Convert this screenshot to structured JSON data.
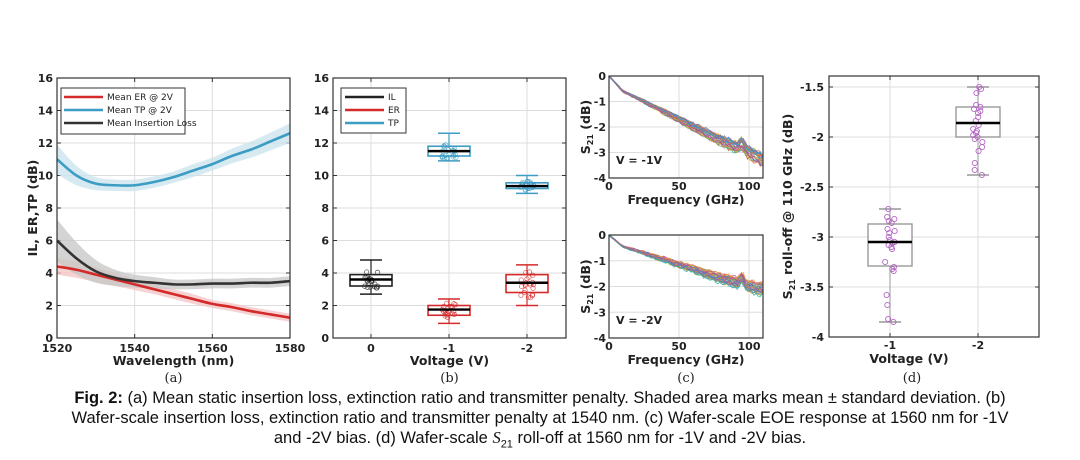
{
  "chart_data": [
    {
      "id": "a",
      "type": "line",
      "panel_label": "(a)",
      "xlabel": "Wavelength (nm)",
      "ylabel": "IL, ER,TP (dB)",
      "xlim": [
        1520,
        1580
      ],
      "ylim": [
        0,
        16
      ],
      "xticks": [
        1520,
        1540,
        1560,
        1580
      ],
      "yticks": [
        0,
        2,
        4,
        6,
        8,
        10,
        12,
        14,
        16
      ],
      "grid": true,
      "legend_position": "top-left",
      "shaded": "mean ± standard deviation",
      "x": [
        1520,
        1525,
        1530,
        1535,
        1540,
        1545,
        1550,
        1555,
        1560,
        1565,
        1570,
        1575,
        1580
      ],
      "series": [
        {
          "name": "Mean ER @ 2V",
          "color": "#d42a2a",
          "values": [
            4.4,
            4.2,
            3.9,
            3.6,
            3.3,
            3.0,
            2.7,
            2.4,
            2.1,
            1.9,
            1.65,
            1.45,
            1.25
          ],
          "std": [
            0.5,
            0.5,
            0.45,
            0.4,
            0.35,
            0.3,
            0.3,
            0.3,
            0.25,
            0.25,
            0.25,
            0.25,
            0.25
          ]
        },
        {
          "name": "Mean TP @ 2V",
          "color": "#3d9cc4",
          "values": [
            11.0,
            10.0,
            9.5,
            9.4,
            9.4,
            9.6,
            9.9,
            10.3,
            10.7,
            11.2,
            11.6,
            12.1,
            12.6
          ],
          "std": [
            0.9,
            0.6,
            0.4,
            0.35,
            0.35,
            0.35,
            0.35,
            0.4,
            0.4,
            0.45,
            0.5,
            0.55,
            0.6
          ]
        },
        {
          "name": "Mean Insertion Loss",
          "color": "#333333",
          "values": [
            6.0,
            4.9,
            4.1,
            3.7,
            3.5,
            3.4,
            3.3,
            3.3,
            3.35,
            3.35,
            3.4,
            3.4,
            3.5
          ],
          "std": [
            1.3,
            1.0,
            0.7,
            0.5,
            0.4,
            0.35,
            0.3,
            0.3,
            0.3,
            0.3,
            0.3,
            0.3,
            0.3
          ]
        }
      ]
    },
    {
      "id": "b",
      "type": "box",
      "panel_label": "(b)",
      "xlabel": "Voltage (V)",
      "ylabel": "",
      "categories": [
        "0",
        "-1",
        "-2"
      ],
      "ylim": [
        0,
        16
      ],
      "yticks": [
        0,
        2,
        4,
        6,
        8,
        10,
        12,
        14,
        16
      ],
      "grid": true,
      "legend_position": "top-left",
      "legend": [
        {
          "name": "IL",
          "color": "#222222"
        },
        {
          "name": "ER",
          "color": "#d42a2a"
        },
        {
          "name": "TP",
          "color": "#3d9cc4"
        }
      ],
      "boxes": [
        {
          "series": "IL",
          "category": "0",
          "color": "#222222",
          "min": 2.7,
          "q1": 3.2,
          "median": 3.6,
          "q3": 3.9,
          "max": 4.8
        },
        {
          "series": "ER",
          "category": "-1",
          "color": "#d42a2a",
          "min": 0.9,
          "q1": 1.4,
          "median": 1.75,
          "q3": 2.0,
          "max": 2.4
        },
        {
          "series": "TP",
          "category": "-1",
          "color": "#3d9cc4",
          "min": 10.9,
          "q1": 11.2,
          "median": 11.5,
          "q3": 11.8,
          "max": 12.6
        },
        {
          "series": "ER",
          "category": "-2",
          "color": "#d42a2a",
          "min": 2.0,
          "q1": 2.8,
          "median": 3.4,
          "q3": 3.9,
          "max": 4.5
        },
        {
          "series": "TP",
          "category": "-2",
          "color": "#3d9cc4",
          "min": 8.9,
          "q1": 9.2,
          "median": 9.35,
          "q3": 9.55,
          "max": 10.0
        }
      ]
    },
    {
      "id": "c-top",
      "type": "line",
      "panel_label": "(c)",
      "annotation": "V = -1V",
      "xlabel": "Frequency (GHz)",
      "ylabel": "S21 (dB)",
      "xlim": [
        0,
        110
      ],
      "ylim": [
        -4,
        0
      ],
      "xticks": [
        0,
        50,
        100
      ],
      "yticks": [
        0,
        -1,
        -2,
        -3,
        -4
      ],
      "grid": true,
      "series_count": 30,
      "trend_x": [
        0,
        10,
        25,
        50,
        75,
        100,
        110
      ],
      "trend_mean": [
        0,
        -0.6,
        -1.0,
        -1.7,
        -2.4,
        -3.0,
        -3.3
      ]
    },
    {
      "id": "c-bottom",
      "type": "line",
      "panel_label": "(c)",
      "annotation": "V = -2V",
      "xlabel": "Frequency (GHz)",
      "ylabel": "S21 (dB)",
      "xlim": [
        0,
        110
      ],
      "ylim": [
        -4,
        0
      ],
      "xticks": [
        0,
        50,
        100
      ],
      "yticks": [
        0,
        -1,
        -2,
        -3,
        -4
      ],
      "grid": true,
      "series_count": 30,
      "trend_x": [
        0,
        10,
        25,
        50,
        75,
        100,
        110
      ],
      "trend_mean": [
        0,
        -0.45,
        -0.7,
        -1.15,
        -1.6,
        -2.0,
        -2.1
      ]
    },
    {
      "id": "d",
      "type": "box",
      "panel_label": "(d)",
      "xlabel": "Voltage (V)",
      "ylabel": "S21 roll-off @ 110 GHz (dB)",
      "categories": [
        "-1",
        "-2"
      ],
      "ylim": [
        -4,
        -1.4
      ],
      "yticks": [
        -1.5,
        -2,
        -2.5,
        -3,
        -3.5,
        -4
      ],
      "ytick_labels": [
        "-1.5",
        "-2",
        "-2.5",
        "-3",
        "-3.5",
        "-4"
      ],
      "grid": true,
      "box_color": "#999999",
      "median_color": "#000000",
      "point_color": "#b366c4",
      "boxes": [
        {
          "category": "-1",
          "min": -3.85,
          "q1": -3.29,
          "median": -3.05,
          "q3": -2.87,
          "max": -2.72,
          "points": [
            -2.72,
            -2.8,
            -2.82,
            -2.84,
            -2.86,
            -2.92,
            -2.94,
            -2.96,
            -3.0,
            -3.03,
            -3.05,
            -3.06,
            -3.08,
            -3.1,
            -3.12,
            -3.25,
            -3.3,
            -3.32,
            -3.34,
            -3.58,
            -3.68,
            -3.82,
            -3.85
          ]
        },
        {
          "category": "-2",
          "min": -2.38,
          "q1": -2.0,
          "median": -1.86,
          "q3": -1.7,
          "max": -1.5,
          "points": [
            -1.5,
            -1.52,
            -1.56,
            -1.68,
            -1.7,
            -1.72,
            -1.74,
            -1.76,
            -1.8,
            -1.84,
            -1.88,
            -1.92,
            -1.94,
            -1.96,
            -1.98,
            -2.0,
            -2.02,
            -2.05,
            -2.1,
            -2.14,
            -2.26,
            -2.33,
            -2.38
          ]
        }
      ]
    }
  ],
  "caption": {
    "fig_label": "Fig. 2:",
    "line1_rest": " (a) Mean static insertion loss, extinction ratio and transmitter penalty. Shaded area marks mean ± standard deviation. (b)",
    "line2": "Wafer-scale insertion loss, extinction ratio and transmitter penalty at 1540 nm. (c) Wafer-scale EOE response at 1560 nm for -1V",
    "line3_pre": "and -2V bias. (d) Wafer-scale ",
    "line3_sym": "S",
    "line3_sub": "21",
    "line3_post": " roll-off at 1560 nm for -1V and -2V bias."
  }
}
